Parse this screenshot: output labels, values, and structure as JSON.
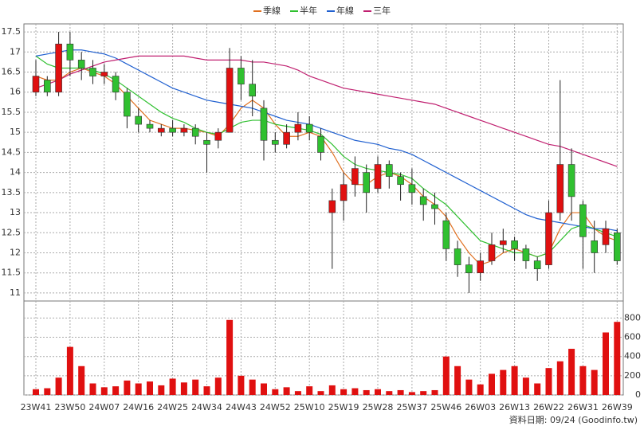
{
  "chart_data": {
    "type": "candlestick",
    "categories": [
      "23W41",
      null,
      null,
      "23W50",
      null,
      null,
      "24W07",
      null,
      null,
      "24W16",
      null,
      null,
      "24W25",
      null,
      null,
      "24W34",
      null,
      null,
      "24W43",
      null,
      null,
      "24W52",
      null,
      null,
      "25W10",
      null,
      null,
      "25W19",
      null,
      null,
      "25W28",
      null,
      null,
      "25W37",
      null,
      null,
      "25W46",
      null,
      null,
      "26W03",
      null,
      null,
      "26W13",
      null,
      null,
      "26W22",
      null,
      null,
      "26W31",
      null,
      null,
      "26W39"
    ],
    "open": [
      16.0,
      16.3,
      16.0,
      17.2,
      16.8,
      16.6,
      16.4,
      16.4,
      16.0,
      15.4,
      15.2,
      15.0,
      15.1,
      15.0,
      15.1,
      14.8,
      14.8,
      15.0,
      16.6,
      16.2,
      15.6,
      14.8,
      14.7,
      15.0,
      15.2,
      14.9,
      13.0,
      13.3,
      13.7,
      14.0,
      13.6,
      14.2,
      13.9,
      13.7,
      13.4,
      13.2,
      12.8,
      12.1,
      11.7,
      11.5,
      11.8,
      12.2,
      12.3,
      12.1,
      11.8,
      11.7,
      13.0,
      14.2,
      13.2,
      12.3,
      12.2,
      12.5
    ],
    "high": [
      16.8,
      16.4,
      17.5,
      17.5,
      17.0,
      16.8,
      16.7,
      16.5,
      16.1,
      15.6,
      15.3,
      15.2,
      15.3,
      15.2,
      15.2,
      15.0,
      15.1,
      17.1,
      16.9,
      16.8,
      15.8,
      15.0,
      15.2,
      15.5,
      15.4,
      15.1,
      13.6,
      14.0,
      14.4,
      14.2,
      14.4,
      14.3,
      14.0,
      14.1,
      13.6,
      13.5,
      13.0,
      12.3,
      11.9,
      12.0,
      12.5,
      12.6,
      12.4,
      12.2,
      11.9,
      13.3,
      16.3,
      14.6,
      13.3,
      12.8,
      12.8,
      12.6
    ],
    "low": [
      15.9,
      15.9,
      15.9,
      16.4,
      16.3,
      16.2,
      16.2,
      15.8,
      15.1,
      15.0,
      15.0,
      14.9,
      14.9,
      14.9,
      14.7,
      14.0,
      14.6,
      15.0,
      15.8,
      15.4,
      14.3,
      14.5,
      14.6,
      14.8,
      14.8,
      14.3,
      11.6,
      12.8,
      13.4,
      13.0,
      13.5,
      13.6,
      13.3,
      13.2,
      12.8,
      12.7,
      11.8,
      11.4,
      11.0,
      11.3,
      11.7,
      12.0,
      11.8,
      11.6,
      11.3,
      11.6,
      12.8,
      12.8,
      11.6,
      11.5,
      12.0,
      11.7
    ],
    "close": [
      16.4,
      16.0,
      17.2,
      16.8,
      16.6,
      16.4,
      16.5,
      16.0,
      15.4,
      15.2,
      15.1,
      15.1,
      15.0,
      15.1,
      14.9,
      14.7,
      15.0,
      16.6,
      16.2,
      15.9,
      14.8,
      14.7,
      15.0,
      15.2,
      15.0,
      14.5,
      13.3,
      13.7,
      14.1,
      13.5,
      14.2,
      13.9,
      13.7,
      13.5,
      13.2,
      13.1,
      12.1,
      11.7,
      11.5,
      11.8,
      12.2,
      12.3,
      12.1,
      11.8,
      11.6,
      13.0,
      14.2,
      13.4,
      12.4,
      12.0,
      12.6,
      11.8
    ],
    "volume": [
      60,
      70,
      180,
      500,
      300,
      120,
      80,
      90,
      150,
      120,
      140,
      100,
      170,
      130,
      160,
      90,
      180,
      780,
      200,
      160,
      120,
      60,
      80,
      40,
      90,
      40,
      100,
      60,
      70,
      50,
      60,
      40,
      50,
      30,
      40,
      50,
      400,
      300,
      160,
      110,
      220,
      260,
      300,
      180,
      120,
      280,
      350,
      480,
      300,
      260,
      650,
      760
    ],
    "series": [
      {
        "name": "季線",
        "color": "#e07020",
        "values": [
          16.4,
          16.3,
          16.3,
          16.5,
          16.6,
          16.5,
          16.4,
          16.2,
          15.9,
          15.6,
          15.3,
          15.2,
          15.1,
          15.1,
          15.05,
          15.0,
          14.9,
          15.2,
          15.6,
          15.8,
          15.6,
          15.2,
          14.9,
          14.9,
          15.0,
          14.9,
          14.5,
          14.0,
          13.7,
          13.7,
          13.9,
          14.0,
          13.9,
          13.7,
          13.4,
          13.2,
          12.9,
          12.4,
          12.0,
          11.7,
          11.8,
          12.0,
          12.1,
          12.0,
          11.9,
          12.0,
          12.6,
          13.0,
          13.0,
          12.6,
          12.4,
          12.3
        ]
      },
      {
        "name": "半年",
        "color": "#30c030",
        "values": [
          16.9,
          16.7,
          16.6,
          16.6,
          16.6,
          16.55,
          16.45,
          16.3,
          16.1,
          15.9,
          15.7,
          15.5,
          15.35,
          15.25,
          15.1,
          15.0,
          14.95,
          15.1,
          15.25,
          15.3,
          15.3,
          15.2,
          15.15,
          15.1,
          15.05,
          14.95,
          14.7,
          14.4,
          14.2,
          14.1,
          14.05,
          14.0,
          13.95,
          13.85,
          13.6,
          13.4,
          13.2,
          12.9,
          12.6,
          12.3,
          12.2,
          12.1,
          12.0,
          12.0,
          11.9,
          12.0,
          12.3,
          12.6,
          12.7,
          12.6,
          12.5,
          12.4
        ]
      },
      {
        "name": "年線",
        "color": "#2060d0",
        "values": [
          16.9,
          16.95,
          17.0,
          17.05,
          17.05,
          17.0,
          16.95,
          16.85,
          16.7,
          16.55,
          16.4,
          16.25,
          16.1,
          16.0,
          15.9,
          15.8,
          15.75,
          15.7,
          15.65,
          15.6,
          15.5,
          15.4,
          15.3,
          15.25,
          15.2,
          15.1,
          15.0,
          14.9,
          14.8,
          14.75,
          14.7,
          14.6,
          14.55,
          14.45,
          14.3,
          14.15,
          14.0,
          13.85,
          13.7,
          13.55,
          13.4,
          13.25,
          13.1,
          12.95,
          12.85,
          12.8,
          12.75,
          12.7,
          12.65,
          12.6,
          12.6,
          12.55
        ]
      },
      {
        "name": "三年",
        "color": "#c02070",
        "values": [
          16.1,
          16.2,
          16.3,
          16.45,
          16.55,
          16.65,
          16.75,
          16.8,
          16.85,
          16.9,
          16.9,
          16.9,
          16.9,
          16.9,
          16.85,
          16.8,
          16.8,
          16.8,
          16.8,
          16.75,
          16.75,
          16.7,
          16.65,
          16.55,
          16.4,
          16.3,
          16.2,
          16.1,
          16.05,
          16.0,
          15.95,
          15.9,
          15.85,
          15.8,
          15.75,
          15.7,
          15.6,
          15.5,
          15.4,
          15.3,
          15.2,
          15.1,
          15.0,
          14.9,
          14.8,
          14.7,
          14.65,
          14.55,
          14.45,
          14.35,
          14.25,
          14.15
        ]
      }
    ],
    "up_color": "#e01010",
    "down_color": "#30c030",
    "volume_color": "#e01010",
    "ylim": [
      10.8,
      17.7
    ],
    "yticks": [
      11,
      11.5,
      12,
      12.5,
      13,
      13.5,
      14,
      14.5,
      15,
      15.5,
      16,
      16.5,
      17,
      17.5
    ],
    "volume_ylim": [
      0,
      977
    ],
    "volume_yticks": [
      0,
      200,
      400,
      600,
      800
    ],
    "grid": true,
    "footer": "資料日期: 09/24  (Goodinfo.tw)"
  }
}
